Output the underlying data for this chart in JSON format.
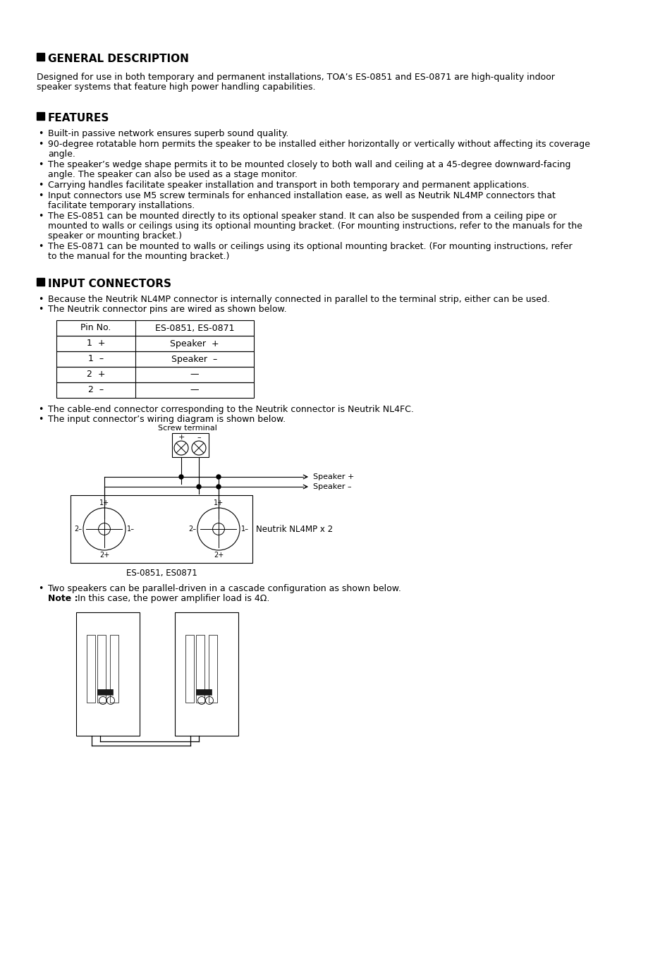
{
  "bg_color": "#ffffff",
  "section1_title": "GENERAL DESCRIPTION",
  "section1_lines": [
    "Designed for use in both temporary and permanent installations, TOA’s ES-0851 and ES-0871 are high-quality indoor",
    "speaker systems that feature high power handling capabilities."
  ],
  "section2_title": "FEATURES",
  "features": [
    [
      "Built-in passive network ensures superb sound quality."
    ],
    [
      "90-degree rotatable horn permits the speaker to be installed either horizontally or vertically without affecting its coverage",
      "angle."
    ],
    [
      "The speaker’s wedge shape permits it to be mounted closely to both wall and ceiling at a 45-degree downward-facing",
      "angle. The speaker can also be used as a stage monitor."
    ],
    [
      "Carrying handles facilitate speaker installation and transport in both temporary and permanent applications."
    ],
    [
      "Input connectors use M5 screw terminals for enhanced installation ease, as well as Neutrik NL4MP connectors that",
      "facilitate temporary installations."
    ],
    [
      "The ES-0851 can be mounted directly to its optional speaker stand. It can also be suspended from a ceiling pipe or",
      "mounted to walls or ceilings using its optional mounting bracket. (For mounting instructions, refer to the manuals for the",
      "speaker or mounting bracket.)"
    ],
    [
      "The ES-0871 can be mounted to walls or ceilings using its optional mounting bracket. (For mounting instructions, refer",
      "to the manual for the mounting bracket.)"
    ]
  ],
  "section3_title": "INPUT CONNECTORS",
  "input_bullets": [
    "Because the Neutrik NL4MP connector is internally connected in parallel to the terminal strip, either can be used.",
    "The Neutrik connector pins are wired as shown below."
  ],
  "table_headers": [
    "Pin No.",
    "ES-0851, ES-0871"
  ],
  "table_rows": [
    [
      "1  +",
      "Speaker  +"
    ],
    [
      "1  –",
      "Speaker  –"
    ],
    [
      "2  +",
      "—"
    ],
    [
      "2  –",
      "—"
    ]
  ],
  "after_table_bullets": [
    "The cable-end connector corresponding to the Neutrik connector is Neutrik NL4FC.",
    "The input connector’s wiring diagram is shown below."
  ],
  "diagram_label": "ES-0851, ES0871",
  "cascade_bullet": "Two speakers can be parallel-driven in a cascade configuration as shown below.",
  "cascade_note_bold": "Note :",
  "cascade_note_rest": " In this case, the power amplifier load is 4Ω."
}
